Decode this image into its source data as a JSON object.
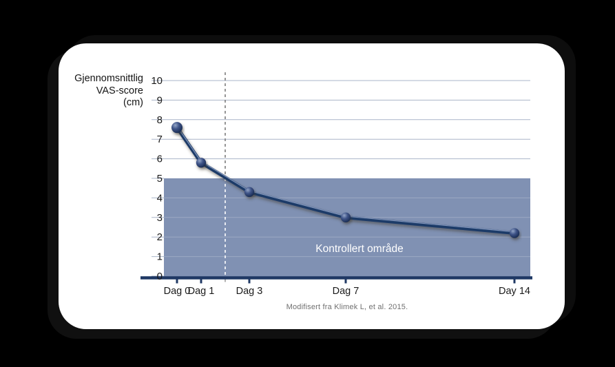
{
  "page": {
    "background": "#000000",
    "card_background": "#ffffff"
  },
  "y_axis_title": {
    "line1": "Gjennomsnittlig",
    "line2": "VAS-score",
    "line3": "(cm)"
  },
  "caption": "Modifisert fra Klimek L, et al. 2015.",
  "chart_data": {
    "type": "line",
    "title": "",
    "x": [
      0,
      1,
      3,
      7,
      14
    ],
    "x_tick_labels": [
      "Dag 0",
      "Dag 1",
      "Dag 3",
      "Dag 7",
      "Day 14"
    ],
    "series": [
      {
        "name": "Gjennomsnittlig VAS-score (cm)",
        "values": [
          7.6,
          5.8,
          4.3,
          3.0,
          2.2
        ]
      }
    ],
    "ylabel": "Gjennomsnittlig VAS-score (cm)",
    "xlabel": "",
    "ylim": [
      0,
      10
    ],
    "y_ticks": [
      0,
      1,
      2,
      3,
      4,
      5,
      6,
      7,
      8,
      9,
      10
    ],
    "grid": true,
    "legend": "none",
    "shaded_region": {
      "from": 0,
      "to": 5,
      "label": "Kontrollert område"
    },
    "dashed_vline_x": 2,
    "colors": {
      "shade_fill": "#8091b3",
      "shade_label": "#ffffff",
      "line": "#1f3a68",
      "line_highlight": "#8095bb",
      "axis": "#1f3864",
      "grid": "#aab4c8",
      "grid_in_shade": "rgba(255,255,255,0.22)",
      "dash_upper": "#7c7c7c",
      "dash_lower": "#ffffff",
      "marker_light": "#93a5c7",
      "marker_mid": "#3f5488",
      "marker_dark": "#16294f",
      "tick_label": "#1a1a1a",
      "caption": "#6f6f6f"
    }
  }
}
